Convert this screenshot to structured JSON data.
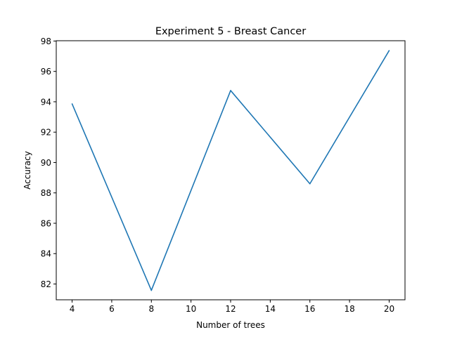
{
  "chart_data": {
    "type": "line",
    "title": "Experiment 5 - Breast Cancer",
    "xlabel": "Number of trees",
    "ylabel": "Accuracy",
    "xlim": [
      3.2,
      20.8
    ],
    "ylim": [
      80.96,
      98.02
    ],
    "x_ticks": [
      4,
      6,
      8,
      10,
      12,
      14,
      16,
      18,
      20
    ],
    "y_ticks": [
      82,
      84,
      86,
      88,
      90,
      92,
      94,
      96,
      98
    ],
    "grid": false,
    "series": [
      {
        "color": "#1f77b4",
        "x": [
          4,
          8,
          12,
          16,
          20
        ],
        "values": [
          93.86,
          81.58,
          94.74,
          88.6,
          97.37
        ]
      }
    ]
  }
}
